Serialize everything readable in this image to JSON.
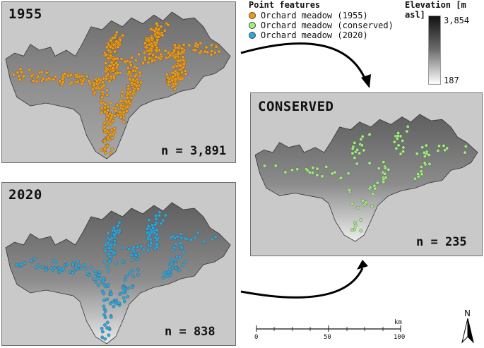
{
  "panels": {
    "p1955": {
      "title": "1955",
      "count": "n = 3,891"
    },
    "p2020": {
      "title": "2020",
      "count": "n = 838"
    },
    "conserved": {
      "title": "CONSERVED",
      "count": "n = 235"
    }
  },
  "legend": {
    "title": "Point features",
    "items": [
      {
        "label": "Orchard meadow (1955)",
        "color": "#f39c12"
      },
      {
        "label": "Orchard meadow (conserved)",
        "color": "#9ef07a"
      },
      {
        "label": "Orchard meadow (2020)",
        "color": "#27a9e1"
      }
    ]
  },
  "elevation": {
    "title": "Elevation [m asl]",
    "max": "3,854",
    "min": "187"
  },
  "scale_bar": {
    "unit": "km",
    "ticks": [
      "0",
      "50",
      "100"
    ]
  },
  "north_arrow": {
    "label": "N"
  }
}
